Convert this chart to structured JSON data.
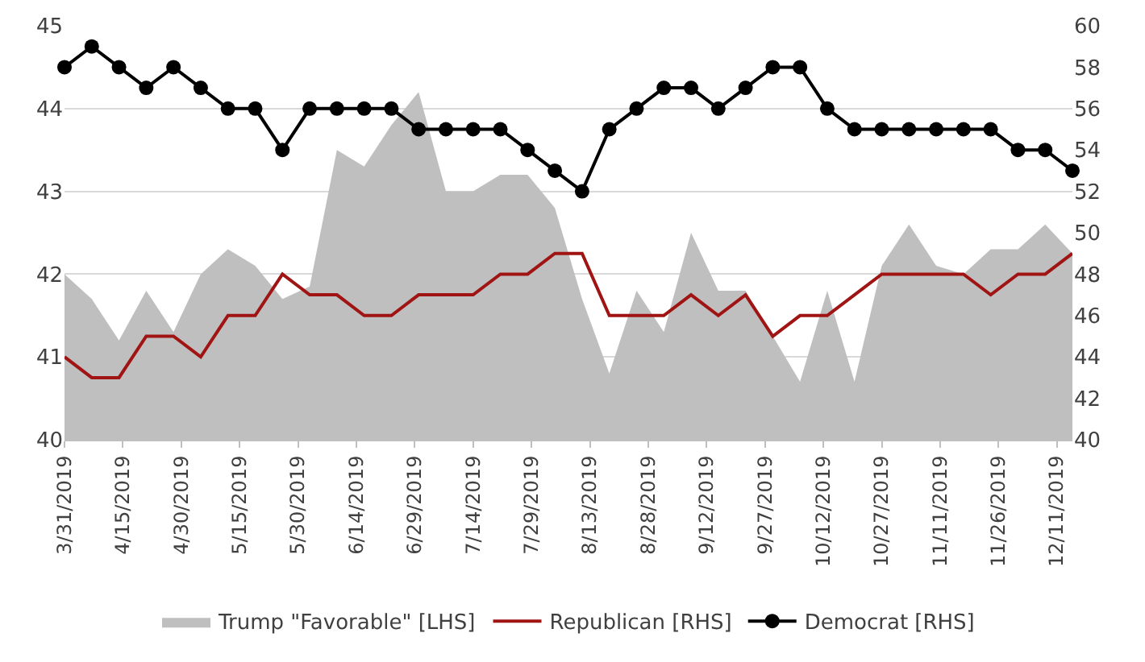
{
  "chart_data": {
    "type": "line",
    "x": [
      "2019-03-31",
      "2019-04-07",
      "2019-04-14",
      "2019-04-21",
      "2019-04-28",
      "2019-05-05",
      "2019-05-12",
      "2019-05-19",
      "2019-05-26",
      "2019-06-02",
      "2019-06-09",
      "2019-06-16",
      "2019-06-23",
      "2019-06-30",
      "2019-07-07",
      "2019-07-14",
      "2019-07-21",
      "2019-07-28",
      "2019-08-04",
      "2019-08-11",
      "2019-08-18",
      "2019-08-25",
      "2019-09-01",
      "2019-09-08",
      "2019-09-15",
      "2019-09-22",
      "2019-09-29",
      "2019-10-06",
      "2019-10-13",
      "2019-10-20",
      "2019-10-27",
      "2019-11-03",
      "2019-11-10",
      "2019-11-17",
      "2019-11-24",
      "2019-12-01",
      "2019-12-08",
      "2019-12-15"
    ],
    "series": [
      {
        "name": "Trump \"Favorable\" [LHS]",
        "type": "area",
        "color": "#bfbfbf",
        "marker": "none",
        "values": [
          42.0,
          41.7,
          41.2,
          41.8,
          41.3,
          42.0,
          42.3,
          42.1,
          41.7,
          41.85,
          43.5,
          43.3,
          43.8,
          44.2,
          43.0,
          43.0,
          43.2,
          43.2,
          42.8,
          41.7,
          40.8,
          41.8,
          41.3,
          42.5,
          41.8,
          41.8,
          41.25,
          40.7,
          41.8,
          40.7,
          42.1,
          42.6,
          42.1,
          42.0,
          42.3,
          42.3,
          42.6,
          42.25
        ]
      },
      {
        "name": "Republican [RHS]",
        "axis": "y2",
        "color": "#a01414",
        "marker": "none",
        "values": [
          44,
          43,
          43,
          45,
          45,
          44,
          46,
          46,
          48,
          47,
          47,
          46,
          46,
          47,
          47,
          47,
          48,
          48,
          49,
          49,
          46,
          46,
          46,
          47,
          46,
          47,
          45,
          46,
          46,
          47,
          48,
          48,
          48,
          48,
          47,
          48,
          48,
          49
        ]
      },
      {
        "name": "Democrat [RHS]",
        "axis": "y2",
        "color": "#000000",
        "marker": "circle",
        "values": [
          58,
          59,
          58,
          57,
          58,
          57,
          56,
          56,
          54,
          56,
          56,
          56,
          56,
          55,
          55,
          55,
          55,
          54,
          53,
          52,
          55,
          56,
          57,
          57,
          56,
          57,
          58,
          58,
          56,
          55,
          55,
          55,
          55,
          55,
          55,
          54,
          54,
          53
        ]
      }
    ],
    "xlim": [
      "2019-03-31",
      "2019-12-15"
    ],
    "xticks": [
      {
        "value": "2019-03-31",
        "label": "3/31/2019"
      },
      {
        "value": "2019-04-15",
        "label": "4/15/2019"
      },
      {
        "value": "2019-04-30",
        "label": "4/30/2019"
      },
      {
        "value": "2019-05-15",
        "label": "5/15/2019"
      },
      {
        "value": "2019-05-30",
        "label": "5/30/2019"
      },
      {
        "value": "2019-06-14",
        "label": "6/14/2019"
      },
      {
        "value": "2019-06-29",
        "label": "6/29/2019"
      },
      {
        "value": "2019-07-14",
        "label": "7/14/2019"
      },
      {
        "value": "2019-07-29",
        "label": "7/29/2019"
      },
      {
        "value": "2019-08-13",
        "label": "8/13/2019"
      },
      {
        "value": "2019-08-28",
        "label": "8/28/2019"
      },
      {
        "value": "2019-09-12",
        "label": "9/12/2019"
      },
      {
        "value": "2019-09-27",
        "label": "9/27/2019"
      },
      {
        "value": "2019-10-12",
        "label": "10/12/2019"
      },
      {
        "value": "2019-10-27",
        "label": "10/27/2019"
      },
      {
        "value": "2019-11-11",
        "label": "11/11/2019"
      },
      {
        "value": "2019-11-26",
        "label": "11/26/2019"
      },
      {
        "value": "2019-12-11",
        "label": "12/11/2019"
      }
    ],
    "ylim": [
      40,
      45
    ],
    "yticks": [
      40,
      41,
      42,
      43,
      44,
      45
    ],
    "y2lim": [
      40,
      60
    ],
    "y2ticks": [
      40,
      42,
      44,
      46,
      48,
      50,
      52,
      54,
      56,
      58,
      60
    ],
    "grid": "y",
    "legend": "bottom"
  }
}
